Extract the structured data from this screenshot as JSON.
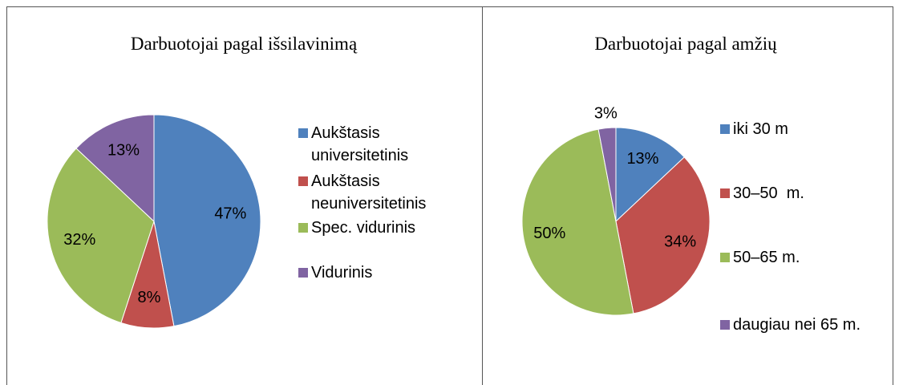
{
  "chart_data": [
    {
      "type": "pie",
      "title": "Darbuotojai pagal išsilavinimą",
      "categories": [
        "Aukštasis universitetinis",
        "Aukštasis neuniversitetinis",
        "Spec. vidurinis",
        "Vidurinis"
      ],
      "values": [
        47,
        8,
        32,
        13
      ],
      "value_labels": [
        "47%",
        "8%",
        "32%",
        "13%"
      ],
      "colors": [
        "#4f81bd",
        "#c0504d",
        "#9bbb59",
        "#8064a2"
      ],
      "legend": "right"
    },
    {
      "type": "pie",
      "title": "Darbuotojai pagal amžių",
      "categories": [
        "iki 30 m",
        "30–50  m.",
        "50–65 m.",
        "daugiau nei 65 m."
      ],
      "values": [
        13,
        34,
        50,
        3
      ],
      "value_labels": [
        "13%",
        "34%",
        "50%",
        "3%"
      ],
      "colors": [
        "#4f81bd",
        "#c0504d",
        "#9bbb59",
        "#8064a2"
      ],
      "legend": "right"
    }
  ]
}
